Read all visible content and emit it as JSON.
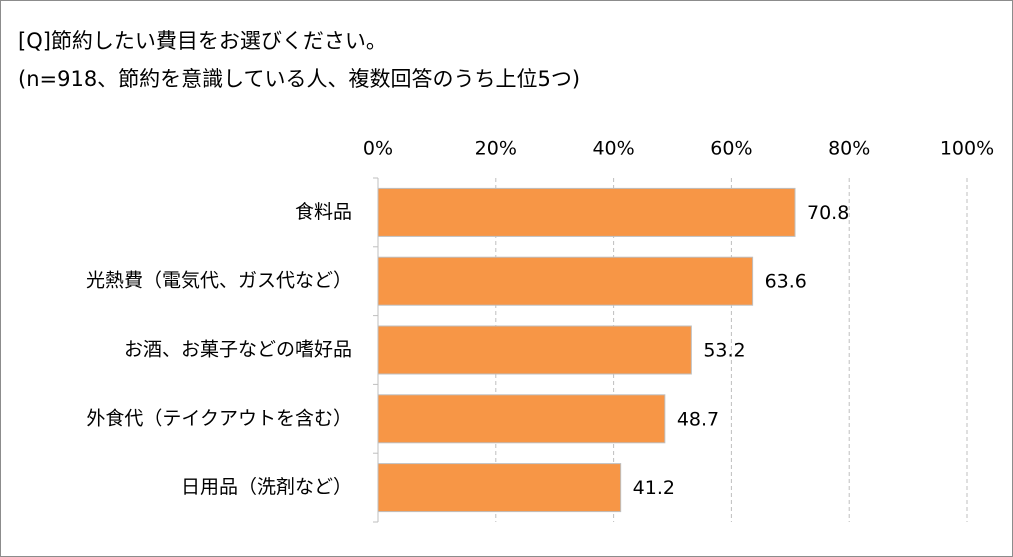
{
  "chart_data": {
    "type": "bar",
    "title": "[Q]節約したい費目をお選びください。",
    "subtitle": "(n=918、節約を意識している人、複数回答のうち上位5つ)",
    "categories": [
      "食料品",
      "光熱費（電気代、ガス代など）",
      "お酒、お菓子などの嗜好品",
      "外食代（テイクアウトを含む）",
      "日用品（洗剤など）"
    ],
    "values": [
      70.8,
      63.6,
      53.2,
      48.7,
      41.2
    ],
    "color": "#f79646",
    "xlim": [
      0,
      100
    ],
    "xticks": [
      {
        "value": 0,
        "label": "0%"
      },
      {
        "value": 20,
        "label": "20%"
      },
      {
        "value": 40,
        "label": "40%"
      },
      {
        "value": 60,
        "label": "60%"
      },
      {
        "value": 80,
        "label": "80%"
      },
      {
        "value": 100,
        "label": "100%"
      }
    ],
    "grid": true
  }
}
